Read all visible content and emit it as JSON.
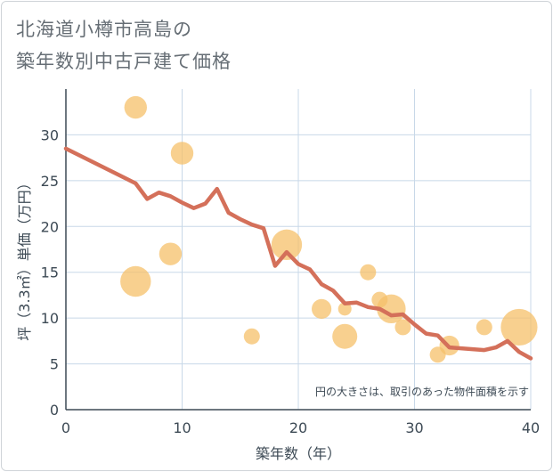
{
  "title_line1": "北海道小樽市高島の",
  "title_line2": "築年数別中古戸建て価格",
  "chart_data": {
    "type": "scatter",
    "xlabel": "築年数（年）",
    "ylabel": "坪（3.3㎡）単価（万円）",
    "xlim": [
      0,
      40
    ],
    "ylim": [
      0,
      35
    ],
    "xticks": [
      0,
      10,
      20,
      30,
      40
    ],
    "yticks": [
      0,
      5,
      10,
      15,
      20,
      25,
      30
    ],
    "note": "円の大きさは、取引のあった物件面積を示す",
    "colors": {
      "bubble": "#f5c06a",
      "line": "#d4705a",
      "grid": "#c8d8e8",
      "axis": "#3d4a55"
    },
    "bubbles": [
      {
        "x": 6,
        "y": 33,
        "size": 3
      },
      {
        "x": 10,
        "y": 28,
        "size": 3
      },
      {
        "x": 6,
        "y": 14,
        "size": 7
      },
      {
        "x": 9,
        "y": 17,
        "size": 3
      },
      {
        "x": 16,
        "y": 8,
        "size": 1
      },
      {
        "x": 19,
        "y": 18,
        "size": 7
      },
      {
        "x": 22,
        "y": 11,
        "size": 2
      },
      {
        "x": 24,
        "y": 11,
        "size": 0.5
      },
      {
        "x": 24,
        "y": 8,
        "size": 4
      },
      {
        "x": 26,
        "y": 15,
        "size": 1
      },
      {
        "x": 27,
        "y": 12,
        "size": 1
      },
      {
        "x": 28,
        "y": 11,
        "size": 6
      },
      {
        "x": 29,
        "y": 9,
        "size": 1
      },
      {
        "x": 32,
        "y": 6,
        "size": 1
      },
      {
        "x": 33,
        "y": 7,
        "size": 2
      },
      {
        "x": 36,
        "y": 9,
        "size": 1
      },
      {
        "x": 39,
        "y": 9,
        "size": 11
      }
    ],
    "line": {
      "x": [
        0,
        6,
        7,
        8,
        9,
        10,
        11,
        12,
        13,
        14,
        15,
        16,
        17,
        18,
        19,
        20,
        21,
        22,
        23,
        24,
        25,
        26,
        27,
        28,
        29,
        30,
        31,
        32,
        33,
        34,
        35,
        36,
        37,
        38,
        39,
        40
      ],
      "y": [
        28.5,
        24.7,
        23,
        23.7,
        23.3,
        22.6,
        22,
        22.5,
        24.1,
        21.5,
        20.8,
        20.2,
        19.8,
        15.7,
        17.2,
        15.9,
        15.3,
        13.7,
        13,
        11.6,
        11.7,
        11.2,
        11,
        10.3,
        10.4,
        9.3,
        8.3,
        8.1,
        6.8,
        6.7,
        6.6,
        6.5,
        6.8,
        7.5,
        6.3,
        5.6
      ]
    }
  }
}
